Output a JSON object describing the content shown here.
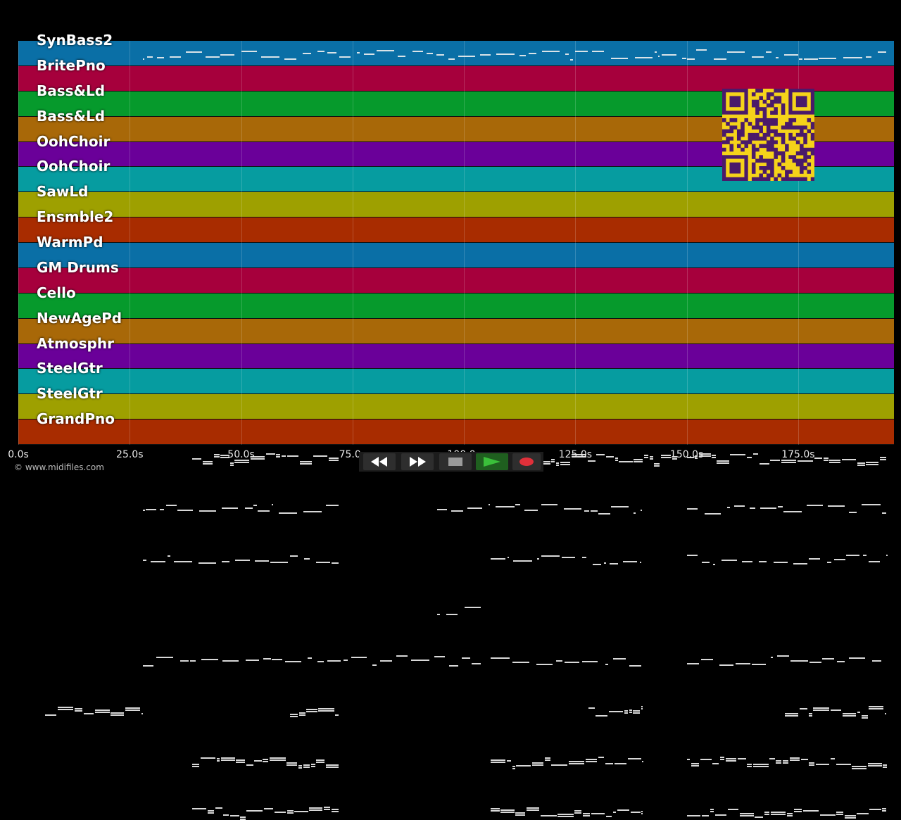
{
  "colors": {
    "track_palette": [
      "#0a6fa6",
      "#a6003c",
      "#069a2c",
      "#a86808",
      "#6a0099",
      "#069ca0",
      "#9ea000",
      "#a82c00"
    ],
    "note": "#f0f0f0",
    "qr_fg": "#4a1a6a",
    "qr_bg": "#f5d31a",
    "record": "#e0303a",
    "play": "#3ac03a"
  },
  "tracks": [
    {
      "name": "SynBass2"
    },
    {
      "name": "BritePno"
    },
    {
      "name": "Bass&Ld"
    },
    {
      "name": "Bass&Ld"
    },
    {
      "name": "OohChoir"
    },
    {
      "name": "OohChoir"
    },
    {
      "name": "SawLd"
    },
    {
      "name": "Ensmble2"
    },
    {
      "name": "WarmPd"
    },
    {
      "name": "GM Drums"
    },
    {
      "name": "Cello"
    },
    {
      "name": "NewAgePd"
    },
    {
      "name": "Atmosphr"
    },
    {
      "name": "SteelGtr"
    },
    {
      "name": "SteelGtr"
    },
    {
      "name": "GrandPno"
    }
  ],
  "timeline": {
    "max_seconds": 196.5,
    "ticks": [
      "0.0s",
      "25.0s",
      "50.0s",
      "75.0s",
      "100.0s",
      "125.0s",
      "150.0s",
      "175.0s"
    ],
    "tick_values": [
      0,
      25,
      50,
      75,
      100,
      125,
      150,
      175
    ]
  },
  "copyright": "© www.midifiles.com",
  "transport": {
    "icons": [
      "rewind-icon",
      "fast-forward-icon",
      "stop-icon",
      "play-icon",
      "record-icon"
    ]
  }
}
